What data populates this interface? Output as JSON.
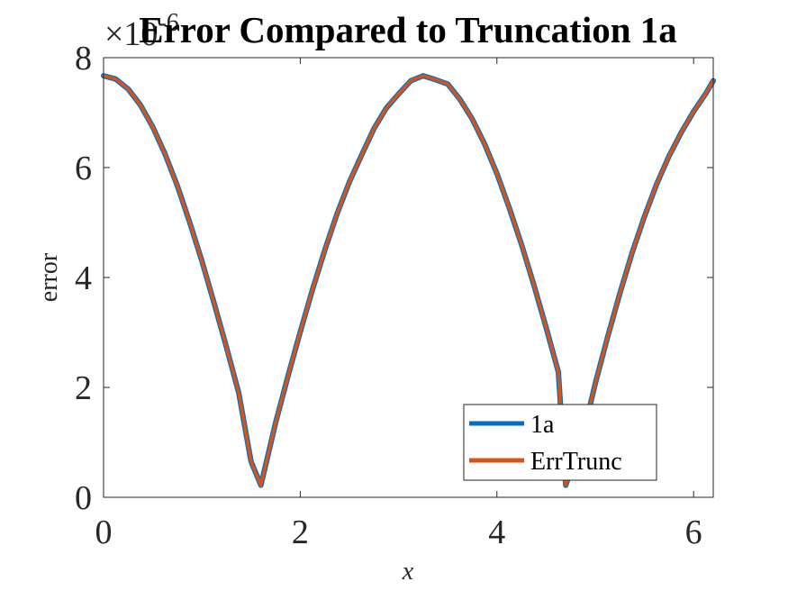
{
  "chart_data": {
    "type": "line",
    "title": "Error Compared to Truncation 1a",
    "xlabel": "x",
    "ylabel": "error",
    "y_exponent_base": "×10",
    "y_exponent_power": "-6",
    "xlim": [
      0,
      6.2
    ],
    "ylim": [
      0,
      8
    ],
    "xticks": [
      0,
      2,
      4,
      6
    ],
    "yticks": [
      0,
      2,
      4,
      6,
      8
    ],
    "xtick_labels": [
      "0",
      "2",
      "4",
      "6"
    ],
    "ytick_labels": [
      "0",
      "2",
      "4",
      "6",
      "8"
    ],
    "grid": false,
    "legend_position": "bottom-right",
    "x": [
      0,
      0.125,
      0.25,
      0.375,
      0.5,
      0.625,
      0.75,
      0.875,
      1.0,
      1.125,
      1.25,
      1.375,
      1.5,
      1.6,
      1.75,
      1.875,
      2.0,
      2.125,
      2.25,
      2.375,
      2.5,
      2.625,
      2.75,
      2.875,
      3.0,
      3.125,
      3.25,
      3.375,
      3.5,
      3.625,
      3.75,
      3.875,
      4.0,
      4.125,
      4.25,
      4.375,
      4.5,
      4.625,
      4.7,
      4.875,
      5.0,
      5.125,
      5.25,
      5.375,
      5.5,
      5.625,
      5.75,
      5.875,
      6.0,
      6.125,
      6.2
    ],
    "series": [
      {
        "name": "1a",
        "color": "#0072BD",
        "values": [
          7.67,
          7.61,
          7.43,
          7.14,
          6.74,
          6.25,
          5.67,
          5.01,
          4.3,
          3.53,
          2.73,
          1.9,
          0.65,
          0.22,
          1.36,
          2.2,
          3.01,
          3.78,
          4.5,
          5.16,
          5.74,
          6.23,
          6.71,
          7.08,
          7.34,
          7.58,
          7.67,
          7.6,
          7.52,
          7.24,
          6.88,
          6.43,
          5.89,
          5.27,
          4.6,
          3.87,
          3.09,
          2.28,
          0.22,
          1.13,
          2.07,
          2.91,
          3.71,
          4.45,
          5.11,
          5.7,
          6.21,
          6.64,
          7.02,
          7.35,
          7.58
        ]
      },
      {
        "name": "ErrTrunc",
        "color": "#D95319",
        "values": [
          7.67,
          7.61,
          7.43,
          7.14,
          6.74,
          6.25,
          5.67,
          5.01,
          4.3,
          3.53,
          2.73,
          1.9,
          0.65,
          0.22,
          1.36,
          2.2,
          3.01,
          3.78,
          4.5,
          5.16,
          5.74,
          6.23,
          6.71,
          7.08,
          7.34,
          7.58,
          7.67,
          7.6,
          7.52,
          7.24,
          6.88,
          6.43,
          5.89,
          5.27,
          4.6,
          3.87,
          3.09,
          2.28,
          0.22,
          1.13,
          2.07,
          2.91,
          3.71,
          4.45,
          5.11,
          5.7,
          6.21,
          6.64,
          7.02,
          7.35,
          7.58
        ]
      }
    ]
  }
}
